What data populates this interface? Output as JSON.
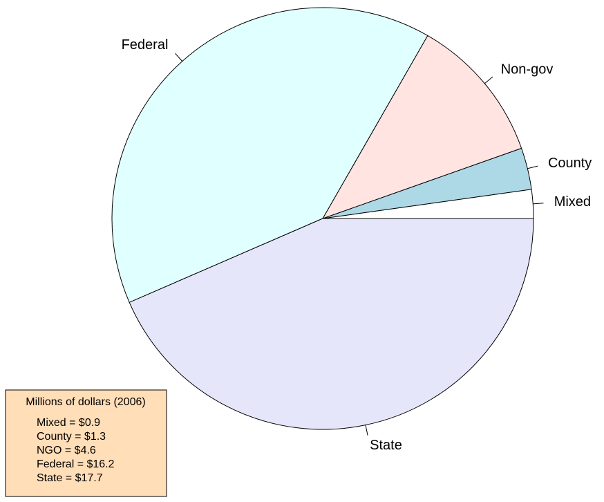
{
  "chart_data": {
    "type": "pie",
    "categories": [
      "Mixed",
      "County",
      "Non-gov",
      "Federal",
      "State"
    ],
    "values": [
      0.9,
      1.3,
      4.6,
      16.2,
      17.7
    ],
    "colors": [
      "#ffffff",
      "#add8e6",
      "#ffe4e1",
      "#e0ffff",
      "#e6e6fa"
    ],
    "legend_title": "Millions of dollars (2006)",
    "value_labels": [
      "Mixed = $0.9",
      "County = $1.3",
      "NGO = $4.6",
      "Federal = $16.2",
      "State = $17.7"
    ],
    "legend_color": "#ffdeb8"
  }
}
